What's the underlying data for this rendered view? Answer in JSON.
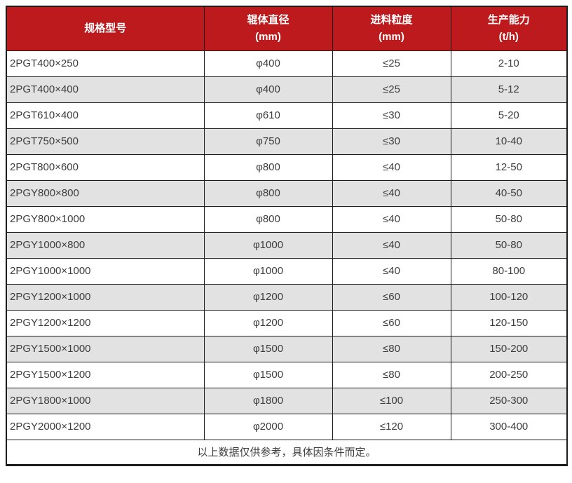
{
  "chart_data": {
    "type": "table",
    "columns": [
      {
        "title": "规格型号",
        "unit": ""
      },
      {
        "title": "辊体直径",
        "unit": "(mm)"
      },
      {
        "title": "进料粒度",
        "unit": "(mm)"
      },
      {
        "title": "生产能力",
        "unit": "(t/h)"
      }
    ],
    "rows": [
      [
        "2PGT400×250",
        "φ400",
        "≤25",
        "2-10"
      ],
      [
        "2PGT400×400",
        "φ400",
        "≤25",
        "5-12"
      ],
      [
        "2PGT610×400",
        "φ610",
        "≤30",
        "5-20"
      ],
      [
        "2PGT750×500",
        "φ750",
        "≤30",
        "10-40"
      ],
      [
        "2PGT800×600",
        "φ800",
        "≤40",
        "12-50"
      ],
      [
        "2PGY800×800",
        "φ800",
        "≤40",
        "40-50"
      ],
      [
        "2PGY800×1000",
        "φ800",
        "≤40",
        "50-80"
      ],
      [
        "2PGY1000×800",
        "φ1000",
        "≤40",
        "50-80"
      ],
      [
        "2PGY1000×1000",
        "φ1000",
        "≤40",
        "80-100"
      ],
      [
        "2PGY1200×1000",
        "φ1200",
        "≤60",
        "100-120"
      ],
      [
        "2PGY1200×1200",
        "φ1200",
        "≤60",
        "120-150"
      ],
      [
        "2PGY1500×1000",
        "φ1500",
        "≤80",
        "150-200"
      ],
      [
        "2PGY1500×1200",
        "φ1500",
        "≤80",
        "200-250"
      ],
      [
        "2PGY1800×1000",
        "φ1800",
        "≤100",
        "250-300"
      ],
      [
        "2PGY2000×1200",
        "φ2000",
        "≤120",
        "300-400"
      ]
    ],
    "footer_note": "以上数据仅供参考，具体因条件而定。"
  },
  "colors": {
    "header_bg": "#bd1a1d",
    "header_text": "#ffffff",
    "row_alt_bg": "#e2e2e2",
    "border": "#1c1c1c",
    "body_text": "#3d3d3d"
  }
}
